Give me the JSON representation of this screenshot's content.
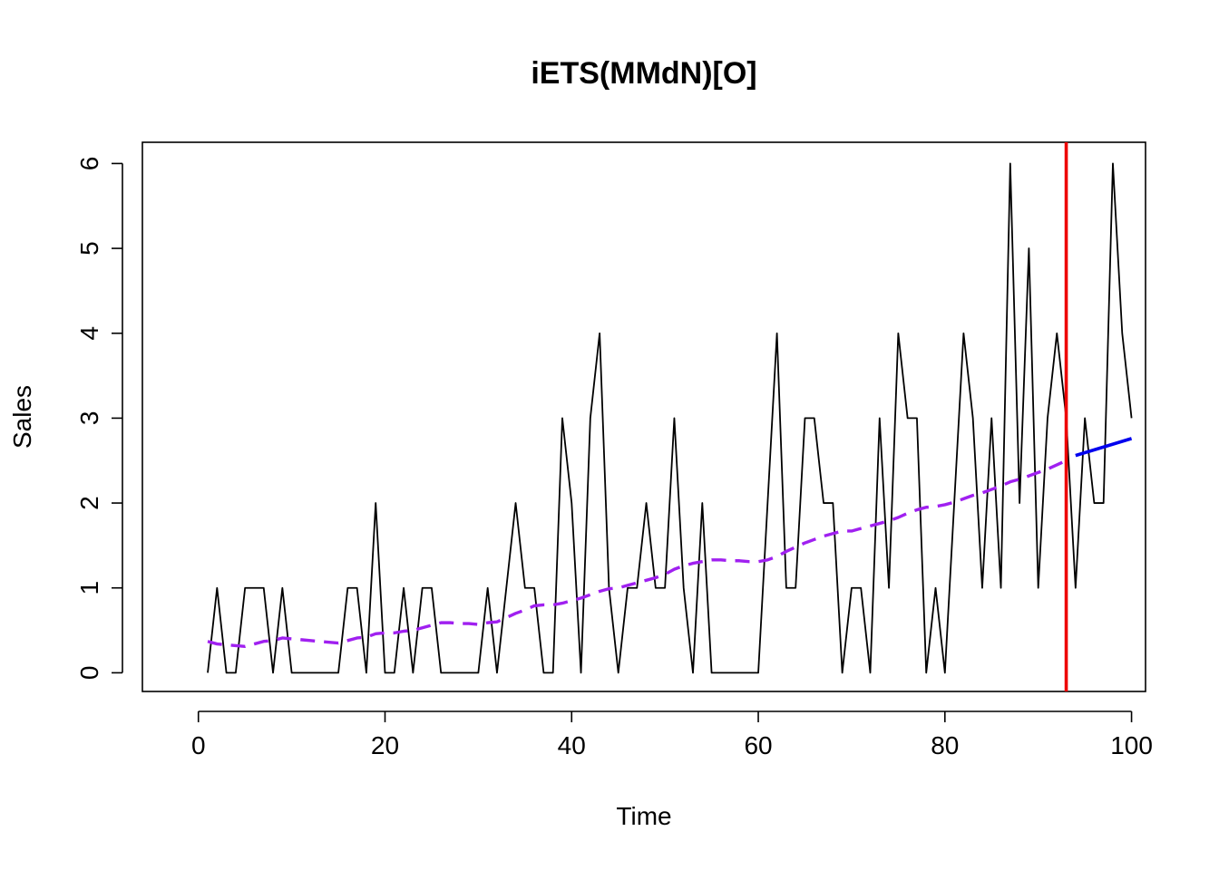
{
  "chart_data": {
    "type": "line",
    "title": "iETS(MMdN)[O]",
    "xlabel": "Time",
    "ylabel": "Sales",
    "xlim": [
      -6,
      101.5
    ],
    "ylim": [
      -0.22,
      6.25
    ],
    "xticks": [
      0,
      20,
      40,
      60,
      80,
      100
    ],
    "yticks": [
      0,
      1,
      2,
      3,
      4,
      5,
      6
    ],
    "grid": false,
    "series": [
      {
        "key": "actual",
        "color": "#000000",
        "style": "solid",
        "x": [
          1,
          2,
          3,
          4,
          5,
          6,
          7,
          8,
          9,
          10,
          11,
          12,
          13,
          14,
          15,
          16,
          17,
          18,
          19,
          20,
          21,
          22,
          23,
          24,
          25,
          26,
          27,
          28,
          29,
          30,
          31,
          32,
          33,
          34,
          35,
          36,
          37,
          38,
          39,
          40,
          41,
          42,
          43,
          44,
          45,
          46,
          47,
          48,
          49,
          50,
          51,
          52,
          53,
          54,
          55,
          56,
          57,
          58,
          59,
          60,
          61,
          62,
          63,
          64,
          65,
          66,
          67,
          68,
          69,
          70,
          71,
          72,
          73,
          74,
          75,
          76,
          77,
          78,
          79,
          80,
          81,
          82,
          83,
          84,
          85,
          86,
          87,
          88,
          89,
          90,
          91,
          92,
          93,
          94,
          95,
          96,
          97,
          98,
          99,
          100
        ],
        "values": [
          0,
          1,
          0,
          0,
          1,
          1,
          1,
          0,
          1,
          0,
          0,
          0,
          0,
          0,
          0,
          1,
          1,
          0,
          2,
          0,
          0,
          1,
          0,
          1,
          1,
          0,
          0,
          0,
          0,
          0,
          1,
          0,
          1,
          2,
          1,
          1,
          0,
          0,
          3,
          2,
          0,
          3,
          4,
          1,
          0,
          1,
          1,
          2,
          1,
          1,
          3,
          1,
          0,
          2,
          0,
          0,
          0,
          0,
          0,
          0,
          2,
          4,
          1,
          1,
          3,
          3,
          2,
          2,
          0,
          1,
          1,
          0,
          3,
          1,
          4,
          3,
          3,
          0,
          1,
          0,
          2,
          4,
          3,
          1,
          3,
          1,
          6,
          2,
          5,
          1,
          3,
          4,
          3,
          1,
          3,
          2,
          2,
          6,
          4,
          3
        ]
      },
      {
        "key": "fitted",
        "color": "#a020f0",
        "style": "dashed",
        "x": [
          1,
          2,
          3,
          4,
          5,
          6,
          7,
          8,
          9,
          10,
          11,
          12,
          13,
          14,
          15,
          16,
          17,
          18,
          19,
          20,
          21,
          22,
          23,
          24,
          25,
          26,
          27,
          28,
          29,
          30,
          31,
          32,
          33,
          34,
          35,
          36,
          37,
          38,
          39,
          40,
          41,
          42,
          43,
          44,
          45,
          46,
          47,
          48,
          49,
          50,
          51,
          52,
          53,
          54,
          55,
          56,
          57,
          58,
          59,
          60,
          61,
          62,
          63,
          64,
          65,
          66,
          67,
          68,
          69,
          70,
          71,
          72,
          73,
          74,
          75,
          76,
          77,
          78,
          79,
          80,
          81,
          82,
          83,
          84,
          85,
          86,
          87,
          88,
          89,
          90,
          91,
          92,
          93
        ],
        "values": [
          0.37,
          0.34,
          0.33,
          0.32,
          0.31,
          0.34,
          0.37,
          0.38,
          0.41,
          0.4,
          0.39,
          0.38,
          0.37,
          0.36,
          0.35,
          0.38,
          0.41,
          0.42,
          0.46,
          0.47,
          0.47,
          0.49,
          0.5,
          0.53,
          0.56,
          0.59,
          0.59,
          0.58,
          0.58,
          0.57,
          0.59,
          0.6,
          0.65,
          0.7,
          0.74,
          0.79,
          0.8,
          0.8,
          0.82,
          0.85,
          0.88,
          0.92,
          0.96,
          0.99,
          1.0,
          1.03,
          1.06,
          1.09,
          1.12,
          1.16,
          1.22,
          1.26,
          1.29,
          1.31,
          1.33,
          1.33,
          1.32,
          1.32,
          1.31,
          1.31,
          1.33,
          1.37,
          1.43,
          1.48,
          1.53,
          1.57,
          1.61,
          1.64,
          1.67,
          1.67,
          1.7,
          1.73,
          1.76,
          1.79,
          1.83,
          1.88,
          1.92,
          1.95,
          1.96,
          1.98,
          2.01,
          2.05,
          2.09,
          2.12,
          2.16,
          2.2,
          2.25,
          2.28,
          2.32,
          2.36,
          2.4,
          2.45,
          2.5
        ]
      },
      {
        "key": "forecast",
        "color": "#0000ee",
        "style": "solid",
        "x": [
          94,
          100
        ],
        "values": [
          2.56,
          2.76
        ]
      }
    ],
    "vlines": [
      {
        "x": 93,
        "color": "#ee0000"
      }
    ]
  }
}
